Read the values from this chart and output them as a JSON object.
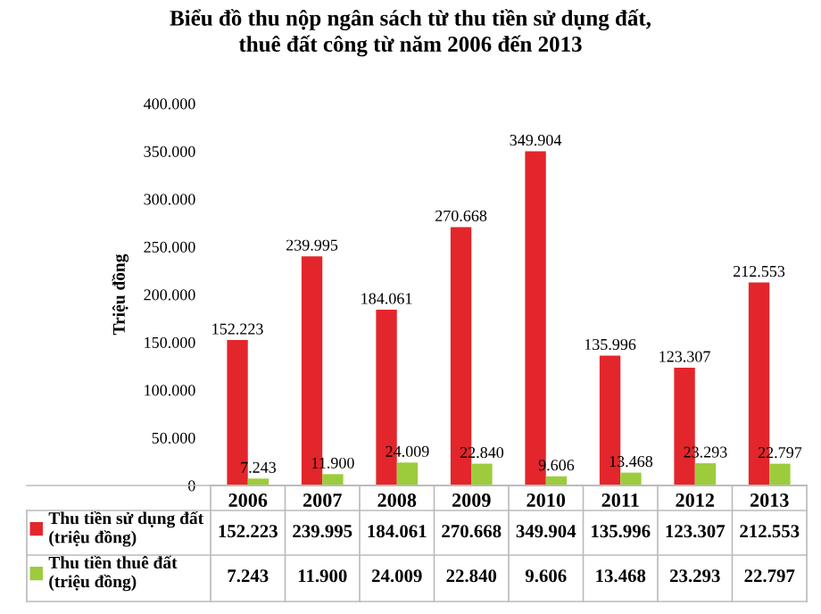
{
  "chart_data": {
    "type": "bar",
    "title": "Biểu đồ thu nộp ngân sách từ thu tiền sử dụng đất,\nthuê đất công từ năm 2006 đến 2013",
    "ylabel": "Triệu đồng",
    "categories": [
      "2006",
      "2007",
      "2008",
      "2009",
      "2010",
      "2011",
      "2012",
      "2013"
    ],
    "series": [
      {
        "name": "Thu tiền sử dụng đất\n(triệu đồng)",
        "color": "#e3262b",
        "values": [
          152223,
          239995,
          184061,
          270668,
          349904,
          135996,
          123307,
          212553
        ],
        "value_labels": [
          "152.223",
          "239.995",
          "184.061",
          "270.668",
          "349.904",
          "135.996",
          "123.307",
          "212.553"
        ]
      },
      {
        "name": "Thu tiền thuê đất\n(triệu đồng)",
        "color": "#9ccc3c",
        "values": [
          7243,
          11900,
          24009,
          22840,
          9606,
          13468,
          23293,
          22797
        ],
        "value_labels": [
          "7.243",
          "11.900",
          "24.009",
          "22.840",
          "9.606",
          "13.468",
          "23.293",
          "22.797"
        ]
      }
    ],
    "ylim": [
      0,
      400000
    ],
    "yticks": [
      0,
      {
        "value": 50000,
        "label": "50.000"
      },
      {
        "value": 100000,
        "label": "100.000"
      },
      {
        "value": 150000,
        "label": "150.000"
      },
      {
        "value": 200000,
        "label": "200.000"
      },
      {
        "value": 250000,
        "label": "250.000"
      },
      {
        "value": 300000,
        "label": "300.000"
      },
      {
        "value": 350000,
        "label": "350.000"
      },
      {
        "value": 400000,
        "label": "400.000"
      }
    ],
    "grid": false,
    "legend": "bottom"
  }
}
